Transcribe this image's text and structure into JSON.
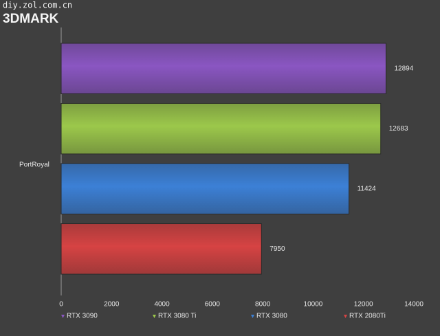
{
  "chart_data": {
    "type": "bar",
    "orientation": "horizontal",
    "watermark": "diy.zol.com.cn",
    "title": "3DMARK",
    "categories": [
      "PortRoyal"
    ],
    "series": [
      {
        "name": "RTX 3090",
        "color": "#8a56c2",
        "values": [
          12894
        ]
      },
      {
        "name": "RTX 3080 Ti",
        "color": "#9cc84b",
        "values": [
          12683
        ]
      },
      {
        "name": "RTX 3080",
        "color": "#3c80d6",
        "values": [
          11424
        ]
      },
      {
        "name": "RTX 2080Ti",
        "color": "#d64343",
        "values": [
          7950
        ]
      }
    ],
    "xlim": [
      0,
      14000
    ],
    "xticks": [
      0,
      2000,
      4000,
      6000,
      8000,
      10000,
      12000,
      14000
    ],
    "grid": false,
    "legend": "bottom"
  }
}
